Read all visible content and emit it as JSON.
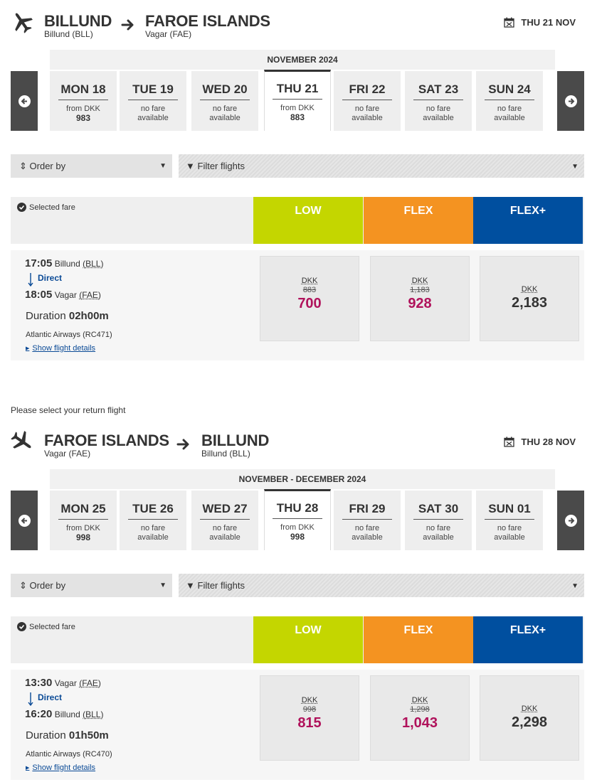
{
  "outbound": {
    "from_city": "BILLUND",
    "from_airport": "Billund (BLL)",
    "to_city": "FAROE ISLANDS",
    "to_airport": "Vagar (FAE)",
    "date": "THU 21 NOV",
    "month": "NOVEMBER 2024",
    "days": [
      {
        "label": "MON 18",
        "line1": "from DKK",
        "line2": "983"
      },
      {
        "label": "TUE 19",
        "line1": "no fare",
        "line2": "available"
      },
      {
        "label": "WED 20",
        "line1": "no fare",
        "line2": "available"
      },
      {
        "label": "THU 21",
        "line1": "from DKK",
        "line2": "883"
      },
      {
        "label": "FRI 22",
        "line1": "no fare",
        "line2": "available"
      },
      {
        "label": "SAT 23",
        "line1": "no fare",
        "line2": "available"
      },
      {
        "label": "SUN 24",
        "line1": "no fare",
        "line2": "available"
      }
    ],
    "flight": {
      "dep_time": "17:05",
      "dep_place": "Billund",
      "dep_code": "(BLL)",
      "stop": "Direct",
      "arr_time": "18:05",
      "arr_place": "Vagar",
      "arr_code": "(FAE)",
      "duration_label": "Duration",
      "duration": "02h00m",
      "airline": "Atlantic Airways (RC471)",
      "low": {
        "currency": "DKK",
        "old": "883",
        "price": "700"
      },
      "flex": {
        "currency": "DKK",
        "old": "1,183",
        "price": "928"
      },
      "flexplus": {
        "currency": "DKK",
        "price": "2,183"
      }
    }
  },
  "return_prompt": "Please select your return flight",
  "inbound": {
    "from_city": "FAROE ISLANDS",
    "from_airport": "Vagar (FAE)",
    "to_city": "BILLUND",
    "to_airport": "Billund (BLL)",
    "date": "THU 28 NOV",
    "month": "NOVEMBER - DECEMBER 2024",
    "days": [
      {
        "label": "MON 25",
        "line1": "from DKK",
        "line2": "998"
      },
      {
        "label": "TUE 26",
        "line1": "no fare",
        "line2": "available"
      },
      {
        "label": "WED 27",
        "line1": "no fare",
        "line2": "available"
      },
      {
        "label": "THU 28",
        "line1": "from DKK",
        "line2": "998"
      },
      {
        "label": "FRI 29",
        "line1": "no fare",
        "line2": "available"
      },
      {
        "label": "SAT 30",
        "line1": "no fare",
        "line2": "available"
      },
      {
        "label": "SUN 01",
        "line1": "no fare",
        "line2": "available"
      }
    ],
    "flight": {
      "dep_time": "13:30",
      "dep_place": "Vagar",
      "dep_code": "(FAE)",
      "stop": "Direct",
      "arr_time": "16:20",
      "arr_place": "Billund",
      "arr_code": "(BLL)",
      "duration_label": "Duration",
      "duration": "01h50m",
      "airline": "Atlantic Airways (RC470)",
      "low": {
        "currency": "DKK",
        "old": "998",
        "price": "815"
      },
      "flex": {
        "currency": "DKK",
        "old": "1,298",
        "price": "1,043"
      },
      "flexplus": {
        "currency": "DKK",
        "price": "2,298"
      }
    }
  },
  "controls": {
    "order_by": "Order by",
    "filter_flights": "Filter flights",
    "selected_fare": "Selected fare",
    "fare_low": "LOW",
    "fare_flex": "FLEX",
    "fare_flexplus": "FLEX+",
    "show_details": "Show flight details"
  },
  "colors": {
    "low": "#c4d600",
    "flex": "#f49321",
    "flexplus": "#004f9f",
    "discount_price": "#b0125b",
    "link": "#0a4a96"
  }
}
